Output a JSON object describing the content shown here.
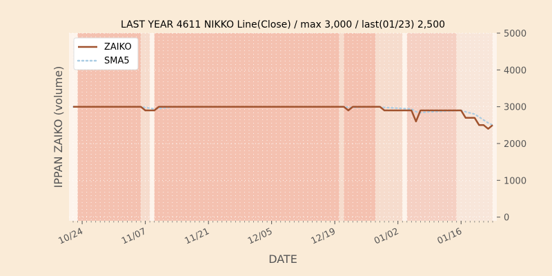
{
  "chart_data": {
    "type": "line",
    "title": "LAST YEAR 4611 NIKKO Line(Close) / max 3,000 / last(01/23) 2,500",
    "xlabel": "DATE",
    "ylabel": "IPPAN ZAIKO (volume)",
    "ylim": [
      -100,
      5000
    ],
    "yticks": [
      "0",
      "1000",
      "2000",
      "3000",
      "4000",
      "5000"
    ],
    "ytick_values": [
      0,
      1000,
      2000,
      3000,
      4000,
      5000
    ],
    "xtick_labels": [
      "10/24",
      "11/07",
      "11/21",
      "12/05",
      "12/19",
      "01/02",
      "01/16"
    ],
    "xtick_dates": [
      "10-24",
      "11-07",
      "11-21",
      "12-05",
      "12-19",
      "01-02",
      "01-16"
    ],
    "x_start": "10-22",
    "x_end": "01-23",
    "grid": true,
    "legend_position": "top-left",
    "series": [
      {
        "name": "ZAIKO",
        "color": "#a0522d",
        "style": "solid",
        "points": [
          [
            "10-22",
            3000
          ],
          [
            "11-06",
            3000
          ],
          [
            "11-07",
            2900
          ],
          [
            "11-09",
            2900
          ],
          [
            "11-10",
            3000
          ],
          [
            "12-21",
            3000
          ],
          [
            "12-22",
            2900
          ],
          [
            "12-23",
            3000
          ],
          [
            "12-29",
            3000
          ],
          [
            "12-30",
            2900
          ],
          [
            "01-05",
            2900
          ],
          [
            "01-06",
            2600
          ],
          [
            "01-07",
            2900
          ],
          [
            "01-16",
            2900
          ],
          [
            "01-17",
            2700
          ],
          [
            "01-19",
            2700
          ],
          [
            "01-20",
            2500
          ],
          [
            "01-21",
            2500
          ],
          [
            "01-22",
            2400
          ],
          [
            "01-23",
            2500
          ]
        ]
      },
      {
        "name": "SMA5",
        "color": "#a9cce3",
        "style": "dotted",
        "points": [
          [
            "10-22",
            3000
          ],
          [
            "11-06",
            3000
          ],
          [
            "11-07",
            2980
          ],
          [
            "11-09",
            2940
          ],
          [
            "11-10",
            2950
          ],
          [
            "11-13",
            2990
          ],
          [
            "12-21",
            3000
          ],
          [
            "12-22",
            2980
          ],
          [
            "12-23",
            2980
          ],
          [
            "12-29",
            3000
          ],
          [
            "12-30",
            2980
          ],
          [
            "01-05",
            2940
          ],
          [
            "01-06",
            2860
          ],
          [
            "01-07",
            2840
          ],
          [
            "01-09",
            2860
          ],
          [
            "01-16",
            2900
          ],
          [
            "01-17",
            2860
          ],
          [
            "01-19",
            2800
          ],
          [
            "01-20",
            2720
          ],
          [
            "01-21",
            2640
          ],
          [
            "01-22",
            2560
          ],
          [
            "01-23",
            2500
          ]
        ]
      }
    ],
    "background_bands": [
      {
        "from": "10-23",
        "to": "11-06",
        "color": "#f4c1b0"
      },
      {
        "from": "11-06",
        "to": "11-08",
        "color": "#f6dccd"
      },
      {
        "from": "11-09",
        "to": "12-20",
        "color": "#f4c1b0"
      },
      {
        "from": "12-20",
        "to": "12-21",
        "color": "#f6dccd"
      },
      {
        "from": "12-21",
        "to": "12-28",
        "color": "#f4c1b0"
      },
      {
        "from": "12-28",
        "to": "01-03",
        "color": "#f6dccd"
      },
      {
        "from": "01-04",
        "to": "01-15",
        "color": "#f5d0c3"
      },
      {
        "from": "01-15",
        "to": "01-23",
        "color": "#f8e6da"
      }
    ]
  }
}
